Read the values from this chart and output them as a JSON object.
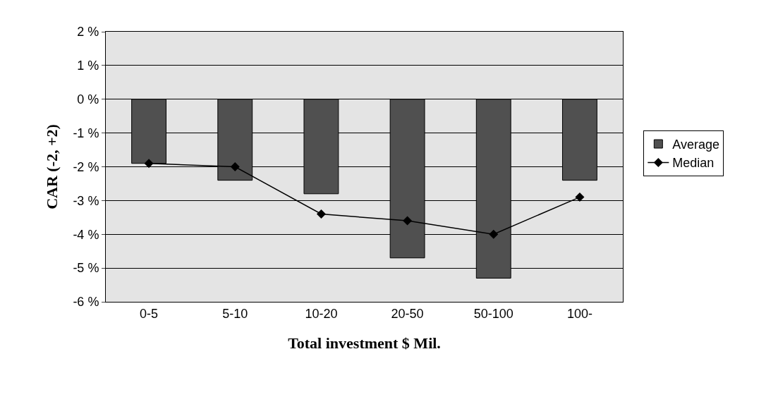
{
  "chart_data": {
    "type": "bar",
    "xlabel": "Total investment $ Mil.",
    "ylabel": "CAR (-2, +2)",
    "categories": [
      "0-5",
      "5-10",
      "10-20",
      "20-50",
      "50-100",
      "100-"
    ],
    "series": [
      {
        "name": "Average",
        "color": "#505050",
        "values": [
          -1.9,
          -2.4,
          -2.8,
          -4.7,
          -5.3,
          -2.4
        ]
      },
      {
        "name": "Median",
        "type": "line",
        "color": "#000000",
        "marker": "diamond",
        "values": [
          -1.9,
          -2.0,
          -3.4,
          -3.6,
          -4.0,
          -2.9
        ]
      }
    ],
    "ylim": [
      -6,
      2
    ],
    "yticks": [
      {
        "value": -6,
        "label": "-6 %"
      },
      {
        "value": -5,
        "label": "-5 %"
      },
      {
        "value": -4,
        "label": "-4 %"
      },
      {
        "value": -3,
        "label": "-3 %"
      },
      {
        "value": -2,
        "label": "-2 %"
      },
      {
        "value": -1,
        "label": "-1 %"
      },
      {
        "value": 0,
        "label": "0 %"
      },
      {
        "value": 1,
        "label": "1 %"
      },
      {
        "value": 2,
        "label": "2 %"
      }
    ],
    "grid": "y",
    "legend": "right"
  }
}
